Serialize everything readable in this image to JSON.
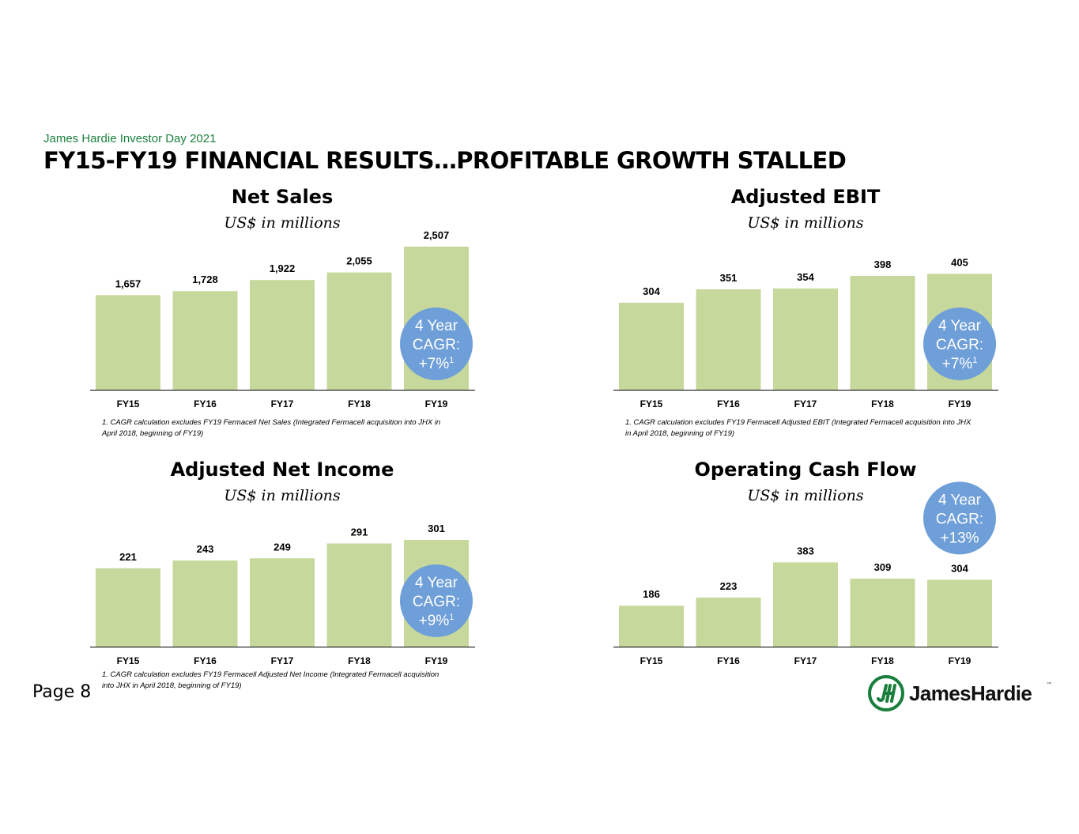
{
  "header": {
    "eyebrow": "James Hardie Investor Day 2021",
    "title": "FY15-FY19 FINANCIAL RESULTS…PROFITABLE GROWTH STALLED"
  },
  "footer": {
    "page_label": "Page 8",
    "logo_text": "JamesHardie",
    "logo_tm": "™"
  },
  "colors": {
    "bar": "#c6d89c",
    "badge": "#6f9fd8",
    "brand_green": "#1a7f3c"
  },
  "chart_data": [
    {
      "type": "bar",
      "title": "Net Sales",
      "subtitle": "US$ in millions",
      "categories": [
        "FY15",
        "FY16",
        "FY17",
        "FY18",
        "FY19"
      ],
      "values": [
        1657,
        1728,
        1922,
        2055,
        2507
      ],
      "value_labels": [
        "1,657",
        "1,728",
        "1,922",
        "2,055",
        "2,507"
      ],
      "ylim": [
        0,
        2507
      ],
      "badge": {
        "lines": [
          "4 Year",
          "CAGR:",
          "+7%"
        ],
        "superscript": "1",
        "position": "over-last-bar"
      },
      "footnote": [
        "1. CAGR calculation excludes FY19 Fermacell Net Sales (Integrated Fermacell acquisition into JHX in",
        "April 2018, beginning of FY19)"
      ]
    },
    {
      "type": "bar",
      "title": "Adjusted EBIT",
      "subtitle": "US$ in millions",
      "categories": [
        "FY15",
        "FY16",
        "FY17",
        "FY18",
        "FY19"
      ],
      "values": [
        304,
        351,
        354,
        398,
        405
      ],
      "value_labels": [
        "304",
        "351",
        "354",
        "398",
        "405"
      ],
      "ylim": [
        0,
        500
      ],
      "badge": {
        "lines": [
          "4 Year",
          "CAGR:",
          "+7%"
        ],
        "superscript": "1",
        "position": "over-last-bar"
      },
      "footnote": [
        "1. CAGR calculation excludes FY19 Fermacell Adjusted EBIT (Integrated Fermacell acquisition into JHX",
        "in April 2018, beginning of FY19)"
      ]
    },
    {
      "type": "bar",
      "title": "Adjusted Net Income",
      "subtitle": "US$ in millions",
      "categories": [
        "FY15",
        "FY16",
        "FY17",
        "FY18",
        "FY19"
      ],
      "values": [
        221,
        243,
        249,
        291,
        301
      ],
      "value_labels": [
        "221",
        "243",
        "249",
        "291",
        "301"
      ],
      "ylim": [
        0,
        301
      ],
      "badge": {
        "lines": [
          "4 Year",
          "CAGR:",
          "+9%"
        ],
        "superscript": "1",
        "position": "over-last-bar"
      },
      "footnote": [
        "1. CAGR calculation excludes FY19 Fermacell Adjusted Net Income (Integrated Fermacell acquisition",
        "into JHX in April 2018, beginning of FY19)"
      ]
    },
    {
      "type": "bar",
      "title": "Operating Cash Flow",
      "subtitle": "US$ in millions",
      "categories": [
        "FY15",
        "FY16",
        "FY17",
        "FY18",
        "FY19"
      ],
      "values": [
        186,
        223,
        383,
        309,
        304
      ],
      "value_labels": [
        "186",
        "223",
        "383",
        "309",
        "304"
      ],
      "ylim": [
        0,
        485
      ],
      "badge": {
        "lines": [
          "4 Year",
          "CAGR:",
          "+13%"
        ],
        "superscript": "",
        "position": "above-last-bar"
      },
      "footnote": []
    }
  ]
}
